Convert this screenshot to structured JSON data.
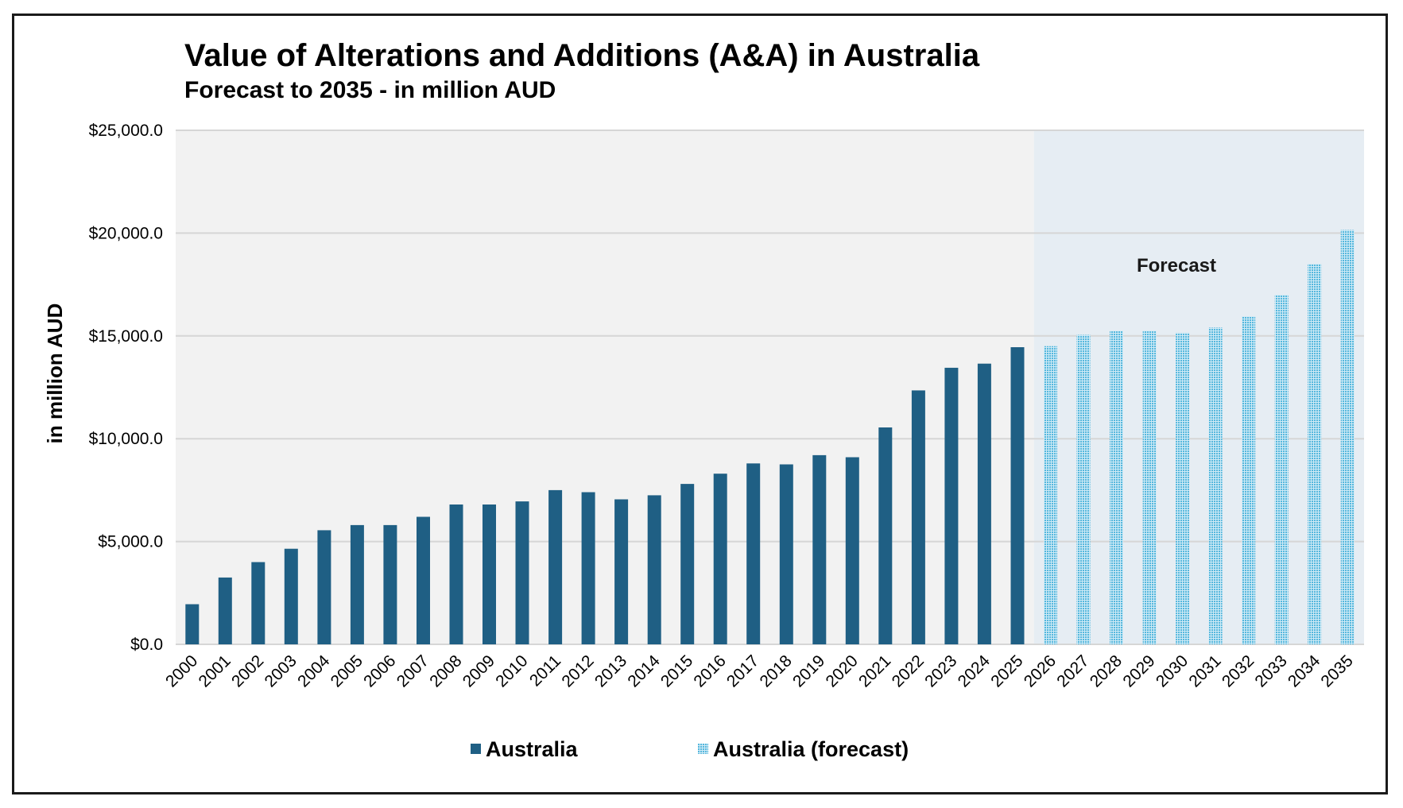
{
  "colors": {
    "actual": "#1f5f84",
    "forecast": "#55b7dd",
    "plot_bg": "#f2f2f2",
    "forecast_bg": "#e6edf3",
    "grid": "#d6d6d6"
  },
  "chart_data": {
    "type": "bar",
    "title": "Value of Alterations and Additions (A&A) in Australia",
    "subtitle": "Forecast to 2035 - in million AUD",
    "xlabel": "",
    "ylabel": "in million  AUD",
    "ylim": [
      0,
      25000
    ],
    "yticks": [
      0,
      5000,
      10000,
      15000,
      20000,
      25000
    ],
    "ytick_labels": [
      "$0.0",
      "$5,000.0",
      "$10,000.0",
      "$15,000.0",
      "$20,000.0",
      "$25,000.0"
    ],
    "grid": true,
    "annotation": "Forecast",
    "categories": [
      "2000",
      "2001",
      "2002",
      "2003",
      "2004",
      "2005",
      "2006",
      "2007",
      "2008",
      "2009",
      "2010",
      "2011",
      "2012",
      "2013",
      "2014",
      "2015",
      "2016",
      "2017",
      "2018",
      "2019",
      "2020",
      "2021",
      "2022",
      "2023",
      "2024",
      "2025",
      "2026",
      "2027",
      "2028",
      "2029",
      "2030",
      "2031",
      "2032",
      "2033",
      "2034",
      "2035"
    ],
    "series": [
      {
        "name": "Australia",
        "values": [
          1950,
          3250,
          4000,
          4650,
          5550,
          5800,
          5800,
          6200,
          6800,
          6800,
          6950,
          7500,
          7400,
          7050,
          7250,
          7800,
          8300,
          8800,
          8750,
          9200,
          9100,
          10550,
          12350,
          13450,
          13650,
          14450,
          null,
          null,
          null,
          null,
          null,
          null,
          null,
          null,
          null,
          null
        ]
      },
      {
        "name": "Australia (forecast)",
        "values": [
          null,
          null,
          null,
          null,
          null,
          null,
          null,
          null,
          null,
          null,
          null,
          null,
          null,
          null,
          null,
          null,
          null,
          null,
          null,
          null,
          null,
          null,
          null,
          null,
          null,
          null,
          14500,
          15050,
          15250,
          15250,
          15150,
          15400,
          15950,
          17000,
          18500,
          20150
        ]
      }
    ],
    "legend": [
      "Australia",
      "Australia (forecast)"
    ],
    "legend_position": "bottom"
  }
}
